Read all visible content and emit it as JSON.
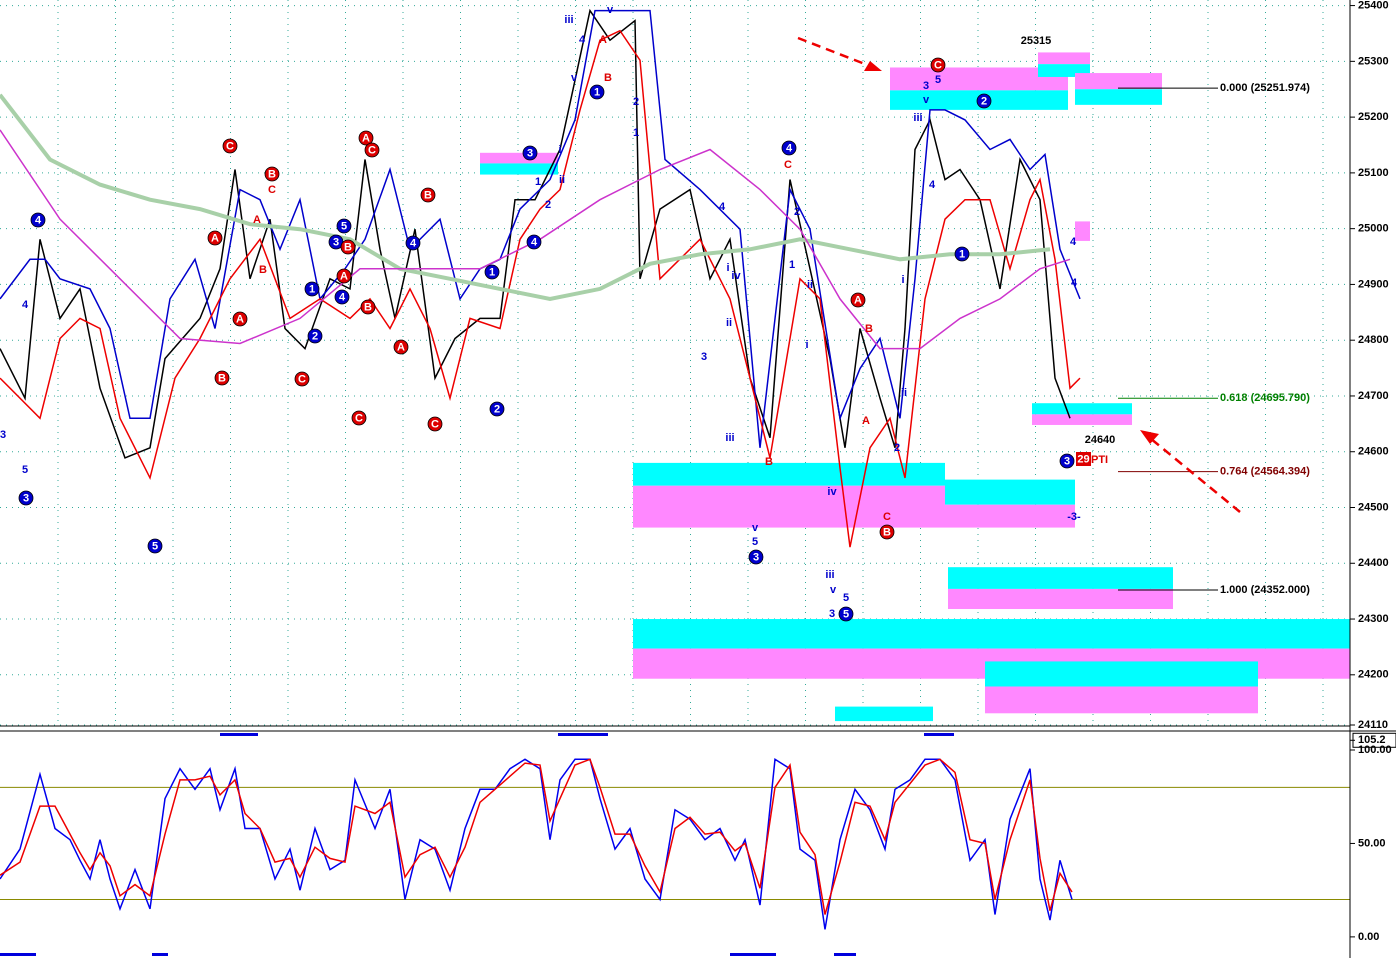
{
  "chart_data": [
    {
      "type": "line",
      "grid": true,
      "xlim": [
        0,
        270
      ],
      "ylim": [
        24110,
        25410
      ],
      "yticks": [
        24110,
        24200,
        24300,
        24400,
        24500,
        24600,
        24700,
        24800,
        24900,
        25000,
        25100,
        25200,
        25300,
        25400
      ],
      "series": [
        {
          "color": "#000000",
          "x": [
            0,
            5,
            8,
            12,
            16,
            20,
            25,
            30,
            33,
            40,
            44,
            47,
            50,
            54,
            57,
            61,
            66,
            70,
            73,
            76,
            79,
            83,
            87,
            91,
            96,
            100,
            103,
            107,
            112,
            115,
            118,
            122,
            127,
            128,
            132,
            138,
            142,
            146,
            150,
            154,
            158,
            162,
            166,
            169,
            172,
            176,
            179,
            181,
            183,
            186,
            189,
            192,
            196,
            200,
            204,
            208,
            211,
            214
          ],
          "values": [
            24785,
            24696,
            24981,
            24839,
            24892,
            24714,
            24589,
            24607,
            24767,
            24839,
            24928,
            25106,
            24910,
            25017,
            24821,
            24785,
            24910,
            24892,
            25124,
            24963,
            24839,
            24999,
            24732,
            24803,
            24839,
            24839,
            25052,
            25052,
            25142,
            25266,
            25391,
            25338,
            25373,
            24910,
            25035,
            25070,
            24910,
            24981,
            24732,
            24625,
            25088,
            24928,
            24767,
            24607,
            24821,
            24696,
            24607,
            24821,
            25142,
            25195,
            25088,
            25106,
            25052,
            24892,
            25124,
            25052,
            24732,
            24660
          ]
        },
        {
          "color": "#0000cc",
          "x": [
            0,
            6,
            9,
            12,
            18,
            22,
            26,
            30,
            34,
            39,
            43,
            48,
            52,
            56,
            60,
            64,
            69,
            73,
            78,
            82,
            88,
            92,
            96,
            100,
            104,
            110,
            115,
            119,
            124,
            130,
            133,
            140,
            148,
            152,
            158,
            162,
            168,
            172,
            176,
            180,
            183,
            186,
            189,
            193,
            198,
            202,
            206,
            209,
            212,
            216
          ],
          "values": [
            24874,
            24945,
            24945,
            24910,
            24892,
            24821,
            24660,
            24660,
            24874,
            24945,
            24821,
            25070,
            25052,
            24963,
            25052,
            24874,
            24928,
            24981,
            25106,
            24963,
            25017,
            24874,
            24928,
            24945,
            25035,
            25088,
            25195,
            25391,
            25391,
            25391,
            25124,
            25070,
            24999,
            24607,
            25070,
            24999,
            24660,
            24749,
            24803,
            24660,
            24910,
            25213,
            25213,
            25195,
            25142,
            25160,
            25106,
            25133,
            24963,
            24874
          ]
        },
        {
          "color": "#ee0000",
          "x": [
            0,
            8,
            12,
            16,
            20,
            24,
            30,
            35,
            40,
            46,
            52,
            58,
            64,
            70,
            74,
            78,
            82,
            86,
            90,
            94,
            100,
            104,
            108,
            112,
            116,
            120,
            124,
            128,
            132,
            140,
            146,
            150,
            154,
            160,
            164,
            168,
            170,
            174,
            178,
            181,
            185,
            189,
            193,
            198,
            202,
            206,
            208,
            211,
            214,
            216
          ],
          "values": [
            24732,
            24660,
            24803,
            24839,
            24821,
            24660,
            24553,
            24732,
            24803,
            24910,
            24981,
            24839,
            24874,
            24839,
            24874,
            24821,
            24892,
            24821,
            24696,
            24839,
            24821,
            24981,
            25035,
            25070,
            25213,
            25338,
            25355,
            25302,
            24910,
            24981,
            24874,
            24732,
            24589,
            24910,
            24874,
            24571,
            24429,
            24607,
            24660,
            24553,
            24874,
            25017,
            25052,
            25052,
            24928,
            25052,
            25088,
            24945,
            24714,
            24732
          ]
        },
        {
          "color": "#a8d0a8",
          "x": [
            0,
            10,
            20,
            30,
            40,
            50,
            60,
            70,
            80,
            90,
            100,
            110,
            120,
            130,
            140,
            150,
            160,
            170,
            180,
            190,
            200,
            210
          ],
          "values": [
            25240,
            25124,
            25079,
            25052,
            25035,
            25008,
            24999,
            24981,
            24928,
            24910,
            24892,
            24874,
            24892,
            24937,
            24954,
            24963,
            24981,
            24963,
            24945,
            24954,
            24954,
            24963
          ]
        },
        {
          "color": "#cc33cc",
          "x": [
            0,
            12,
            24,
            36,
            48,
            60,
            72,
            84,
            96,
            108,
            120,
            132,
            142,
            152,
            160,
            168,
            176,
            184,
            192,
            200,
            208,
            214
          ],
          "values": [
            25177,
            25017,
            24910,
            24803,
            24794,
            24839,
            24928,
            24928,
            24928,
            24981,
            25052,
            25106,
            25142,
            25070,
            24999,
            24874,
            24785,
            24785,
            24839,
            24874,
            24928,
            24945
          ]
        }
      ],
      "zones": [
        {
          "x": [
            178,
            213.6
          ],
          "y": [
            25248,
            25289
          ],
          "color": "#ff88ff"
        },
        {
          "x": [
            178,
            213.6
          ],
          "y": [
            25213,
            25248
          ],
          "color": "#00ffff"
        },
        {
          "x": [
            207.6,
            218
          ],
          "y": [
            25295,
            25316
          ],
          "color": "#ff88ff"
        },
        {
          "x": [
            207.6,
            218
          ],
          "y": [
            25272,
            25295
          ],
          "color": "#00ffff"
        },
        {
          "x": [
            215,
            232.4
          ],
          "y": [
            25250,
            25279
          ],
          "color": "#ff88ff"
        },
        {
          "x": [
            215,
            232.4
          ],
          "y": [
            25222,
            25250
          ],
          "color": "#00ffff"
        },
        {
          "x": [
            96,
            111.6
          ],
          "y": [
            25117,
            25136
          ],
          "color": "#ff88ff"
        },
        {
          "x": [
            96,
            111.6
          ],
          "y": [
            25097,
            25117
          ],
          "color": "#00ffff"
        },
        {
          "x": [
            206.4,
            226.4
          ],
          "y": [
            24667,
            24687
          ],
          "color": "#00ffff"
        },
        {
          "x": [
            206.4,
            226.4
          ],
          "y": [
            24648,
            24667
          ],
          "color": "#ff88ff"
        },
        {
          "x": [
            126.6,
            189
          ],
          "y": [
            24539,
            24580
          ],
          "color": "#00ffff"
        },
        {
          "x": [
            126.6,
            189
          ],
          "y": [
            24464,
            24539
          ],
          "color": "#ff88ff"
        },
        {
          "x": [
            189,
            215
          ],
          "y": [
            24505,
            24550
          ],
          "color": "#00ffff"
        },
        {
          "x": [
            189,
            215
          ],
          "y": [
            24464,
            24505
          ],
          "color": "#ff88ff"
        },
        {
          "x": [
            189.6,
            234.6
          ],
          "y": [
            24354,
            24393
          ],
          "color": "#00ffff"
        },
        {
          "x": [
            189.6,
            234.6
          ],
          "y": [
            24318,
            24354
          ],
          "color": "#ff88ff"
        },
        {
          "x": [
            126.6,
            270
          ],
          "y": [
            24247,
            24300
          ],
          "color": "#00ffff"
        },
        {
          "x": [
            126.6,
            270
          ],
          "y": [
            24193,
            24247
          ],
          "color": "#ff88ff"
        },
        {
          "x": [
            197,
            251.6
          ],
          "y": [
            24179,
            24224
          ],
          "color": "#00ffff"
        },
        {
          "x": [
            197,
            251.6
          ],
          "y": [
            24131,
            24179
          ],
          "color": "#ff88ff"
        },
        {
          "x": [
            167,
            186.6
          ],
          "y": [
            24117,
            24143
          ],
          "color": "#00ffff"
        },
        {
          "x": [
            215,
            218
          ],
          "y": [
            24978,
            25013
          ],
          "color": "#ff88ff"
        }
      ],
      "levels": [
        {
          "value": 25251.974,
          "label": "0.000 (25251.974)",
          "color": "#000000"
        },
        {
          "value": 24695.79,
          "label": "0.618 (24695.790)",
          "color": "#008000"
        },
        {
          "value": 24564.394,
          "label": "0.764 (24564.394)",
          "color": "#800000"
        },
        {
          "value": 24352.0,
          "label": "1.000 (24352.000)",
          "color": "#000000"
        }
      ],
      "marked_prices": [
        25315,
        24640
      ],
      "bar_count": 29,
      "bar_count_label": "PTI",
      "wave_labels": [
        "4",
        "5",
        "3",
        "3",
        "4",
        "5",
        "C",
        "A",
        "A",
        "B",
        "B",
        "C",
        "A",
        "B",
        "C",
        "2",
        "1",
        "3",
        "5",
        "B",
        "A",
        "4",
        "A",
        "C",
        "B",
        "C",
        "A",
        "B",
        "4",
        "C",
        "2",
        "1",
        "4",
        "3",
        "1",
        "2",
        "i",
        "ii",
        "iii",
        "4",
        "v",
        "1",
        "v",
        "A",
        "B",
        "2",
        "1",
        "4",
        "C",
        "4",
        "3",
        "i",
        "iv",
        "ii",
        "iii",
        "v",
        "5",
        "3",
        "2",
        "1",
        "ii",
        "i",
        "iv",
        "iii",
        "v",
        "5",
        "5",
        "3",
        "B",
        "A",
        "B",
        "A",
        "C",
        "B",
        "2",
        "ii",
        "i",
        "iii",
        "3",
        "v",
        "5",
        "C",
        "4",
        "2",
        "1",
        "3",
        "-3-",
        "4",
        "4"
      ]
    },
    {
      "type": "line",
      "xlim": [
        0,
        270
      ],
      "ylim": [
        -11.3,
        109.1
      ],
      "yticks": [
        105.2,
        {
          "value": 100,
          "label": "100.00"
        },
        {
          "value": 50,
          "label": "50.00"
        },
        {
          "value": 0,
          "label": "0.00"
        }
      ],
      "hlines": [
        80,
        20
      ],
      "series": [
        {
          "color": "#0000ee",
          "x": [
            0,
            4,
            8,
            11,
            14,
            16,
            18,
            20,
            22,
            24,
            27,
            30,
            33,
            36,
            39,
            42,
            44,
            47,
            49,
            52,
            55,
            58,
            60,
            63,
            66,
            69,
            71,
            75,
            78,
            81,
            84,
            87,
            90,
            93,
            96,
            99,
            102,
            105,
            108,
            110,
            112,
            115,
            118,
            120,
            123,
            126,
            129,
            132,
            135,
            138,
            141,
            144,
            147,
            149,
            152,
            155,
            158,
            160,
            163,
            165,
            168,
            171,
            174,
            177,
            179,
            182,
            185,
            188,
            191,
            194,
            197,
            199,
            202,
            206,
            208,
            210,
            212,
            214.4
          ],
          "values": [
            31,
            47,
            87,
            58,
            52,
            41,
            31,
            52,
            31,
            15,
            36,
            15,
            74,
            90,
            79,
            90,
            68,
            90,
            58,
            58,
            31,
            47,
            25,
            58,
            36,
            41,
            84,
            58,
            79,
            20,
            52,
            47,
            25,
            58,
            79,
            79,
            90,
            95,
            90,
            52,
            84,
            95,
            95,
            74,
            47,
            58,
            31,
            20,
            68,
            63,
            52,
            58,
            41,
            52,
            17,
            95,
            90,
            47,
            41,
            4,
            52,
            79,
            68,
            47,
            79,
            84,
            95,
            95,
            84,
            41,
            52,
            12,
            63,
            90,
            31,
            9,
            41,
            20
          ]
        },
        {
          "color": "#ee0000",
          "x": [
            0,
            4,
            8,
            11,
            14,
            16,
            18,
            20,
            22,
            24,
            27,
            30,
            33,
            36,
            39,
            42,
            44,
            47,
            49,
            52,
            55,
            58,
            60,
            63,
            66,
            69,
            71,
            75,
            78,
            81,
            84,
            87,
            90,
            93,
            96,
            99,
            102,
            105,
            108,
            110,
            112,
            115,
            118,
            120,
            123,
            126,
            129,
            132,
            135,
            138,
            141,
            144,
            147,
            149,
            152,
            155,
            158,
            160,
            163,
            165,
            168,
            171,
            174,
            177,
            179,
            182,
            185,
            188,
            191,
            194,
            197,
            199,
            202,
            206,
            208,
            210,
            212,
            214.4
          ],
          "values": [
            33,
            40,
            70,
            70,
            55,
            45,
            36,
            45,
            38,
            22,
            28,
            22,
            55,
            84,
            84,
            86,
            76,
            84,
            66,
            58,
            40,
            42,
            32,
            48,
            42,
            40,
            70,
            66,
            72,
            32,
            44,
            48,
            32,
            48,
            72,
            79,
            86,
            93,
            92,
            62,
            74,
            92,
            95,
            80,
            55,
            55,
            38,
            24,
            58,
            64,
            55,
            56,
            46,
            50,
            26,
            80,
            92,
            56,
            44,
            12,
            40,
            72,
            70,
            52,
            72,
            82,
            92,
            95,
            88,
            52,
            50,
            20,
            52,
            84,
            42,
            14,
            34,
            24
          ]
        }
      ]
    }
  ]
}
